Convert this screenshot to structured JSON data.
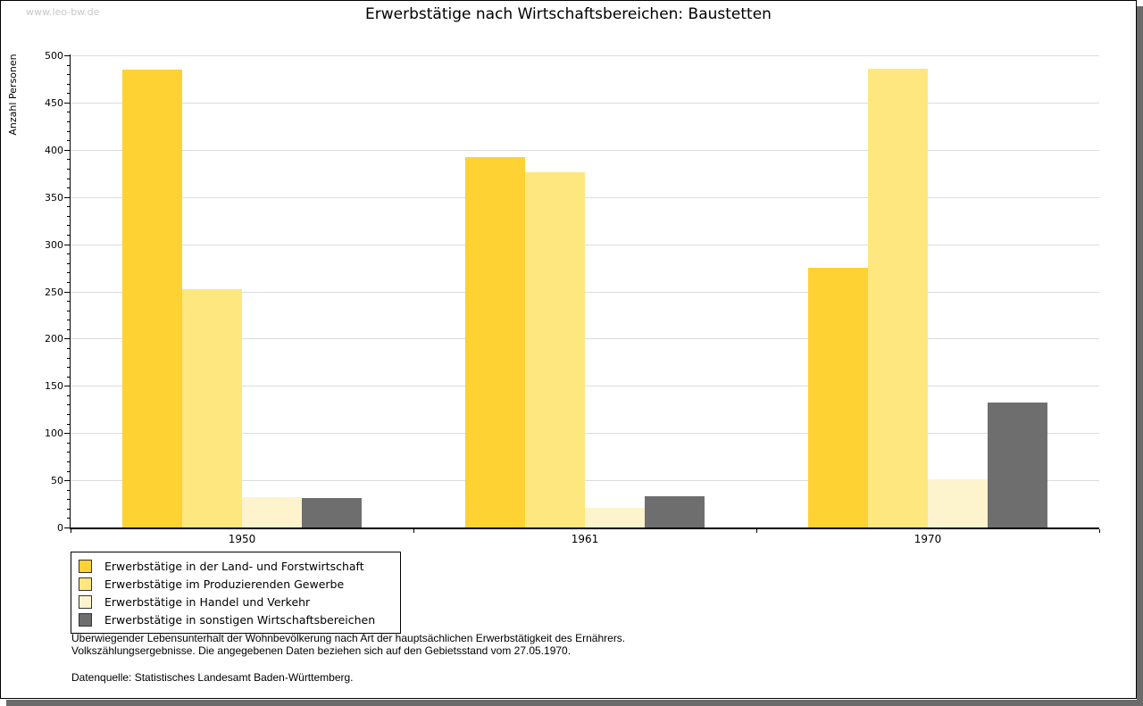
{
  "page": {
    "watermark": "www.leo-bw.de",
    "title": "Erwerbstätige nach Wirtschaftsbereichen: Baustetten"
  },
  "chart_data": {
    "type": "bar",
    "title": "Erwerbstätige nach Wirtschaftsbereichen: Baustetten",
    "xlabel": "",
    "ylabel": "Anzahl Personen",
    "categories": [
      "1950",
      "1961",
      "1970"
    ],
    "series": [
      {
        "name": "Erwerbstätige in der Land- und Forstwirtschaft",
        "color": "#FDD232",
        "values": [
          485,
          392,
          275
        ]
      },
      {
        "name": "Erwerbstätige im Produzierenden Gewerbe",
        "color": "#FDE77E",
        "values": [
          252,
          376,
          486
        ]
      },
      {
        "name": "Erwerbstätige in Handel und Verkehr",
        "color": "#FDF3CD",
        "values": [
          32,
          21,
          51
        ]
      },
      {
        "name": "Erwerbstätige in sonstigen Wirtschaftsbereichen",
        "color": "#6E6E6E",
        "values": [
          31,
          33,
          132
        ]
      }
    ],
    "ylim": [
      0,
      500
    ],
    "ytick_step": 50,
    "y_minor_tick_step": 10,
    "grid": true,
    "legend_position": "bottom-left"
  },
  "footer": {
    "line1": "Überwiegender Lebensunterhalt der Wohnbevölkerung nach Art der hauptsächlichen Erwerbstätigkeit des Ernährers.",
    "line2": "Volkszählungsergebnisse. Die angegebenen Daten beziehen sich auf den Gebietsstand vom 27.05.1970.",
    "source": "Datenquelle: Statistisches Landesamt Baden-Württemberg."
  },
  "colors": {
    "grid": "#DCDCDC",
    "axis": "#000000",
    "watermark": "#C8C8C8",
    "shadow": "#6B6B6B"
  }
}
